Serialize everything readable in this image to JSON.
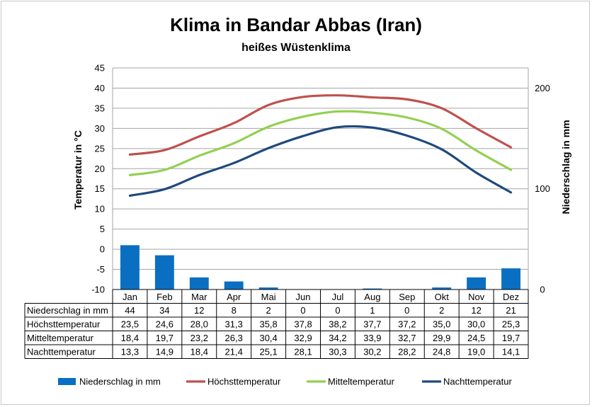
{
  "chart_data": {
    "type": "bar+line",
    "title": "Klima in Bandar Abbas (Iran)",
    "subtitle": "heißes Wüstenklima",
    "categories": [
      "Jan",
      "Feb",
      "Mar",
      "Apr",
      "Mai",
      "Jun",
      "Jul",
      "Aug",
      "Sep",
      "Okt",
      "Nov",
      "Dez"
    ],
    "y_left": {
      "label": "Temperatur in °C",
      "min": -10,
      "max": 45,
      "step": 5,
      "ticks": [
        "-10",
        "-5",
        "0",
        "5",
        "10",
        "15",
        "20",
        "25",
        "30",
        "35",
        "40",
        "45"
      ]
    },
    "y_right": {
      "label": "Niederschlag in mm",
      "min": 0,
      "max": 220,
      "ticks": [
        0,
        100,
        200
      ],
      "tick_labels": [
        "0",
        "100",
        "200"
      ]
    },
    "grid": true,
    "legend_position": "bottom",
    "series": [
      {
        "name": "Niederschlag in mm",
        "kind": "bar",
        "axis": "right",
        "color": "#0a6fc2",
        "values": [
          44,
          34,
          12,
          8,
          2,
          0,
          0,
          1,
          0,
          2,
          12,
          21
        ],
        "labels": [
          "44",
          "34",
          "12",
          "8",
          "2",
          "0",
          "0",
          "1",
          "0",
          "2",
          "12",
          "21"
        ]
      },
      {
        "name": "Höchsttemperatur",
        "kind": "line",
        "axis": "left",
        "color": "#c0504d",
        "values": [
          23.5,
          24.6,
          28.0,
          31.3,
          35.8,
          37.8,
          38.2,
          37.7,
          37.2,
          35.0,
          30.0,
          25.3
        ],
        "labels": [
          "23,5",
          "24,6",
          "28,0",
          "31,3",
          "35,8",
          "37,8",
          "38,2",
          "37,7",
          "37,2",
          "35,0",
          "30,0",
          "25,3"
        ]
      },
      {
        "name": "Mitteltemperatur",
        "kind": "line",
        "axis": "left",
        "color": "#92d050",
        "values": [
          18.4,
          19.7,
          23.2,
          26.3,
          30.4,
          32.9,
          34.2,
          33.9,
          32.7,
          29.9,
          24.5,
          19.7
        ],
        "labels": [
          "18,4",
          "19,7",
          "23,2",
          "26,3",
          "30,4",
          "32,9",
          "34,2",
          "33,9",
          "32,7",
          "29,9",
          "24,5",
          "19,7"
        ]
      },
      {
        "name": "Nachttemperatur",
        "kind": "line",
        "axis": "left",
        "color": "#1f497d",
        "values": [
          13.3,
          14.9,
          18.4,
          21.4,
          25.1,
          28.1,
          30.3,
          30.2,
          28.2,
          24.8,
          19.0,
          14.1
        ],
        "labels": [
          "13,3",
          "14,9",
          "18,4",
          "21,4",
          "25,1",
          "28,1",
          "30,3",
          "30,2",
          "28,2",
          "24,8",
          "19,0",
          "14,1"
        ]
      }
    ]
  }
}
